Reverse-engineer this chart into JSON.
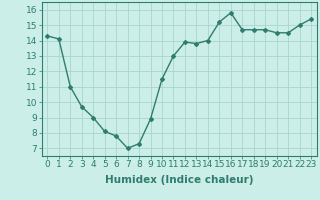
{
  "x": [
    0,
    1,
    2,
    3,
    4,
    5,
    6,
    7,
    8,
    9,
    10,
    11,
    12,
    13,
    14,
    15,
    16,
    17,
    18,
    19,
    20,
    21,
    22,
    23
  ],
  "y": [
    14.3,
    14.1,
    11.0,
    9.7,
    9.0,
    8.1,
    7.8,
    7.0,
    7.3,
    8.9,
    11.5,
    13.0,
    13.9,
    13.8,
    14.0,
    15.2,
    15.8,
    14.7,
    14.7,
    14.7,
    14.5,
    14.5,
    15.0,
    15.4
  ],
  "line_color": "#2e7d6e",
  "marker": "D",
  "marker_size": 2.0,
  "bg_color": "#cceee8",
  "grid_color": "#aad4ce",
  "xlabel": "Humidex (Indice chaleur)",
  "xlim": [
    -0.5,
    23.5
  ],
  "ylim": [
    6.5,
    16.5
  ],
  "yticks": [
    7,
    8,
    9,
    10,
    11,
    12,
    13,
    14,
    15,
    16
  ],
  "xticks": [
    0,
    1,
    2,
    3,
    4,
    5,
    6,
    7,
    8,
    9,
    10,
    11,
    12,
    13,
    14,
    15,
    16,
    17,
    18,
    19,
    20,
    21,
    22,
    23
  ],
  "tick_color": "#2e7d6e",
  "label_color": "#2e7d6e",
  "font_size": 6.5,
  "xlabel_fontsize": 7.5,
  "linewidth": 1.0
}
